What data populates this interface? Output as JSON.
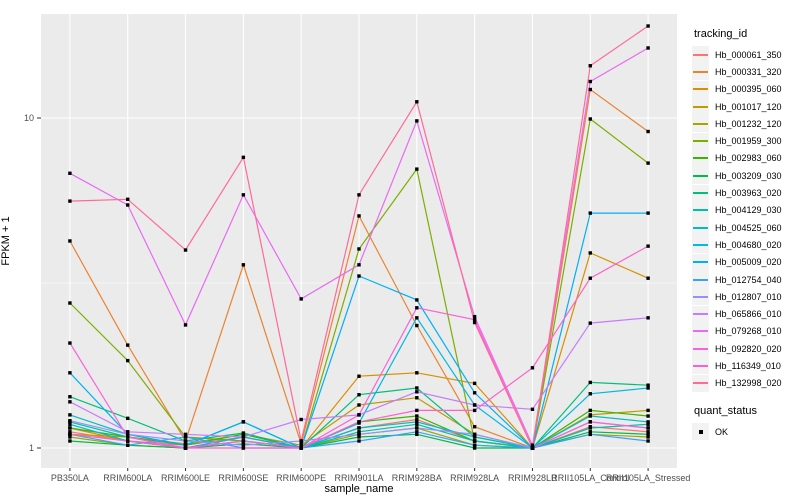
{
  "chart_data": {
    "type": "line",
    "xlabel": "sample_name",
    "ylabel": "FPKM + 1",
    "y_scale": "log10",
    "y_ticks": [
      {
        "value": 1,
        "label": "1"
      },
      {
        "value": 10,
        "label": "10"
      }
    ],
    "y_minor_ticks": [
      3.1623
    ],
    "panel_bg": "#EBEBEB",
    "grid_color": "#FFFFFF",
    "point_color": "#000000",
    "tick_label_color": "#4D4D4D",
    "legend_title": "tracking_id",
    "legend_position": "right",
    "categories": [
      "PB350LA",
      "RRIM600LA",
      "RRIM600LE",
      "RRIM600SE",
      "RRIM600PE",
      "RRIM901LA",
      "RRIM928BA",
      "RRIM928LA",
      "RRIM928LB",
      "RRII105LA_Control",
      "RRII105LA_Stressed"
    ],
    "series": [
      {
        "name": "Hb_000061_350",
        "color": "#F8766D",
        "values": [
          1.12,
          1.05,
          1.02,
          1.08,
          1.0,
          1.15,
          1.22,
          1.05,
          1.0,
          1.16,
          1.12
        ]
      },
      {
        "name": "Hb_000331_320",
        "color": "#EA8331",
        "values": [
          4.24,
          2.05,
          1.05,
          3.59,
          1.03,
          5.05,
          2.35,
          1.16,
          1.0,
          12.2,
          9.1
        ]
      },
      {
        "name": "Hb_000395_060",
        "color": "#D89000",
        "values": [
          1.15,
          1.05,
          1.0,
          1.08,
          1.0,
          1.65,
          1.69,
          1.57,
          1.0,
          3.9,
          3.27
        ]
      },
      {
        "name": "Hb_001017_120",
        "color": "#C09B00",
        "values": [
          1.1,
          1.08,
          1.03,
          1.1,
          1.02,
          1.35,
          1.42,
          1.1,
          1.0,
          1.26,
          1.3
        ]
      },
      {
        "name": "Hb_001232_120",
        "color": "#A3A500",
        "values": [
          1.08,
          1.02,
          1.0,
          1.05,
          1.0,
          1.1,
          1.15,
          1.02,
          1.0,
          1.1,
          1.08
        ]
      },
      {
        "name": "Hb_001959_300",
        "color": "#7CAE00",
        "values": [
          2.75,
          1.84,
          1.08,
          1.05,
          1.0,
          4.01,
          7.0,
          1.05,
          1.0,
          9.93,
          7.3
        ]
      },
      {
        "name": "Hb_002983_060",
        "color": "#39B600",
        "values": [
          1.15,
          1.08,
          1.02,
          1.1,
          1.0,
          1.2,
          1.25,
          1.05,
          1.0,
          1.3,
          1.25
        ]
      },
      {
        "name": "Hb_003209_030",
        "color": "#00BB4E",
        "values": [
          1.05,
          1.02,
          1.0,
          1.03,
          1.0,
          1.08,
          1.1,
          1.0,
          1.0,
          1.12,
          1.1
        ]
      },
      {
        "name": "Hb_003963_020",
        "color": "#00BF7D",
        "values": [
          1.43,
          1.23,
          1.05,
          1.11,
          1.0,
          1.45,
          1.52,
          1.08,
          1.0,
          1.58,
          1.55
        ]
      },
      {
        "name": "Hb_004129_030",
        "color": "#00C1A3",
        "values": [
          1.2,
          1.08,
          1.0,
          1.05,
          1.0,
          1.12,
          1.18,
          1.05,
          1.0,
          1.15,
          1.18
        ]
      },
      {
        "name": "Hb_004525_060",
        "color": "#00BFC4",
        "values": [
          1.26,
          1.1,
          1.02,
          1.2,
          1.0,
          1.15,
          1.2,
          1.08,
          1.0,
          1.25,
          1.2
        ]
      },
      {
        "name": "Hb_004680_020",
        "color": "#00BAE0",
        "values": [
          1.18,
          1.05,
          1.0,
          1.08,
          1.0,
          1.19,
          2.48,
          1.35,
          1.0,
          1.46,
          1.52
        ]
      },
      {
        "name": "Hb_005009_020",
        "color": "#00B0F6",
        "values": [
          1.69,
          1.1,
          1.02,
          1.2,
          1.0,
          3.32,
          2.81,
          1.47,
          1.0,
          5.15,
          5.15
        ]
      },
      {
        "name": "Hb_012754_040",
        "color": "#35A2FF",
        "values": [
          1.1,
          1.02,
          1.08,
          1.0,
          1.0,
          1.05,
          1.12,
          1.02,
          1.0,
          1.1,
          1.05
        ]
      },
      {
        "name": "Hb_012807_010",
        "color": "#9590FF",
        "values": [
          1.21,
          1.1,
          1.05,
          1.02,
          1.05,
          1.1,
          1.15,
          1.1,
          1.0,
          1.2,
          1.15
        ]
      },
      {
        "name": "Hb_065866_010",
        "color": "#C77CFF",
        "values": [
          1.38,
          1.12,
          1.1,
          1.08,
          1.22,
          1.26,
          1.48,
          1.35,
          1.31,
          2.39,
          2.48
        ]
      },
      {
        "name": "Hb_079268_010",
        "color": "#E76BF3",
        "values": [
          6.8,
          5.45,
          2.36,
          5.85,
          2.83,
          3.59,
          9.8,
          2.5,
          1.02,
          12.9,
          16.3
        ]
      },
      {
        "name": "Hb_092820_020",
        "color": "#FA62DB",
        "values": [
          2.08,
          1.08,
          1.0,
          1.05,
          1.0,
          1.26,
          2.66,
          2.45,
          1.0,
          1.2,
          1.15
        ]
      },
      {
        "name": "Hb_116349_010",
        "color": "#FF61CC",
        "values": [
          1.1,
          1.05,
          1.0,
          1.0,
          1.0,
          1.2,
          1.3,
          1.3,
          1.75,
          3.27,
          4.09
        ]
      },
      {
        "name": "Hb_132998_020",
        "color": "#FF6A98",
        "values": [
          5.6,
          5.67,
          3.98,
          7.6,
          1.05,
          5.85,
          11.2,
          2.4,
          1.0,
          14.4,
          19.0
        ]
      }
    ],
    "quant_legend": {
      "title": "quant_status",
      "items": [
        "OK"
      ]
    }
  }
}
